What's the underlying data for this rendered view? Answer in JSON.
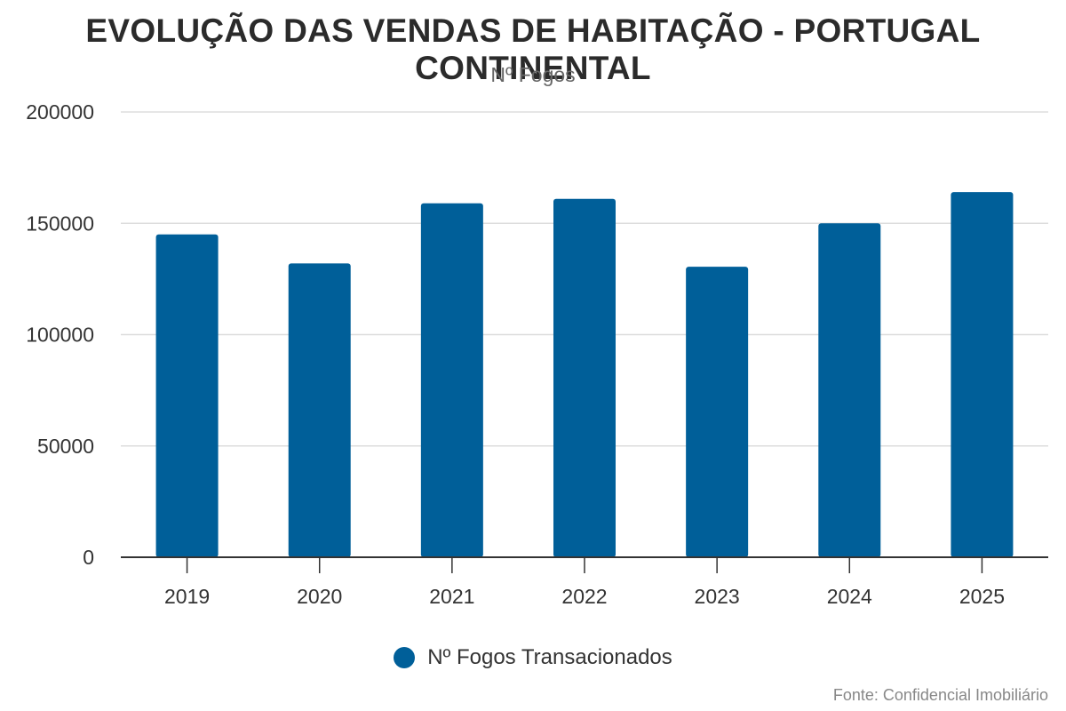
{
  "title": "EVOLUÇÃO DAS VENDAS DE HABITAÇÃO - PORTUGAL CONTINENTAL",
  "subtitle": "Nº Fogos",
  "source": "Fonte: Confidencial Imobiliário",
  "colors": {
    "bar": "#005f99",
    "grid": "#dddddd",
    "axis": "#333333"
  },
  "chart_data": {
    "type": "bar",
    "categories": [
      "2019",
      "2020",
      "2021",
      "2022",
      "2023",
      "2024",
      "2025"
    ],
    "series": [
      {
        "name": "Nº Fogos Transacionados",
        "values": [
          145000,
          132000,
          159000,
          161000,
          130500,
          150000,
          164000
        ]
      }
    ],
    "title": "EVOLUÇÃO DAS VENDAS DE HABITAÇÃO - PORTUGAL CONTINENTAL",
    "subtitle": "Nº Fogos",
    "xlabel": "",
    "ylabel": "",
    "ylim": [
      0,
      200000
    ],
    "yticks": [
      0,
      50000,
      100000,
      150000,
      200000
    ],
    "grid": true,
    "legend": "bottom-center"
  }
}
